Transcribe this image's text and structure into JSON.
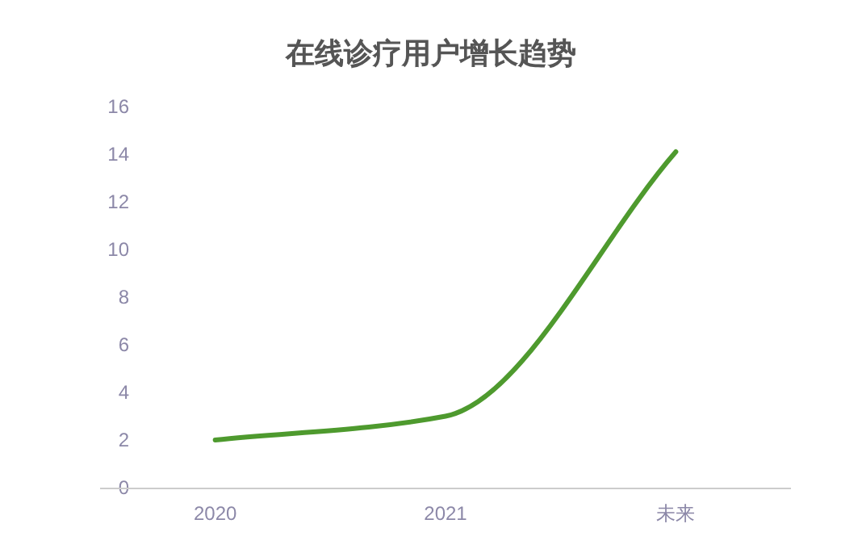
{
  "chart_data": {
    "type": "line",
    "title": "在线诊疗用户增长趋势",
    "categories": [
      "2020",
      "2021",
      "未来"
    ],
    "series": [
      {
        "color": "#4e9a2e",
        "values": [
          2.0,
          3.0,
          14.1
        ]
      }
    ],
    "ylim": [
      0,
      16
    ],
    "yticks": [
      0,
      2,
      4,
      6,
      8,
      10,
      12,
      14,
      16
    ]
  }
}
